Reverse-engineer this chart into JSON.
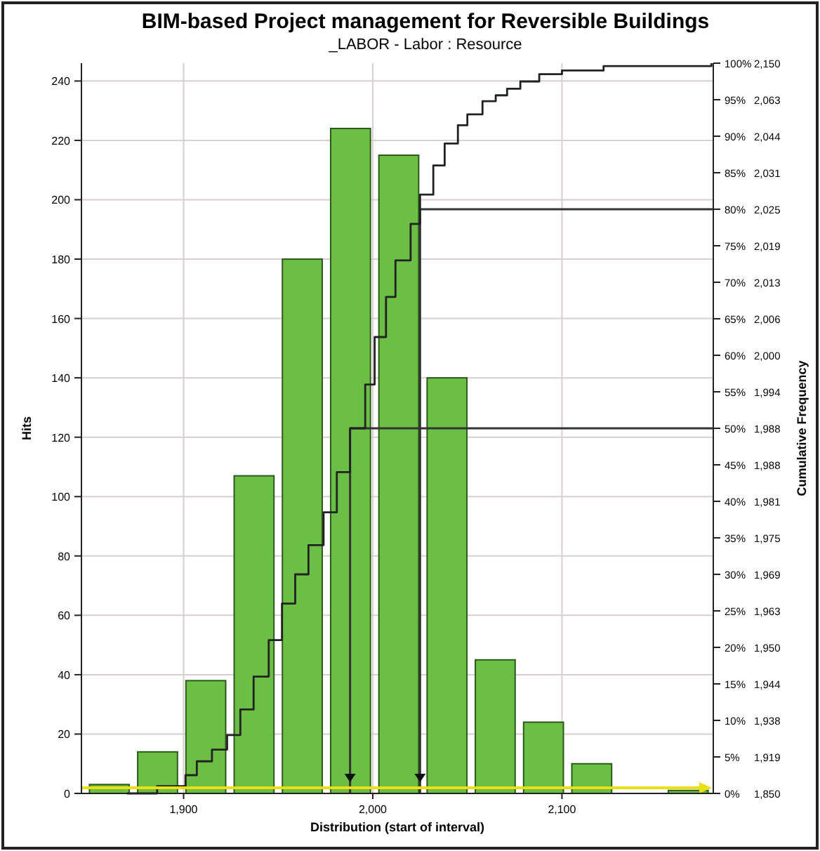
{
  "chart_data": {
    "type": "histogram",
    "title": "BIM-based Project management for Reversible Buildings",
    "subtitle": "_LABOR - Labor : Resource",
    "xlabel": "Distribution (start of interval)",
    "ylabel": "Hits",
    "y2label": "Cumulative Frequency",
    "bins": [
      1848,
      1873.5,
      1899,
      1924.5,
      1950,
      1975.5,
      2001,
      2026.5,
      2052,
      2077.5,
      2103,
      2128.5,
      2154,
      2179.5
    ],
    "values": [
      3,
      14,
      38,
      107,
      180,
      224,
      215,
      140,
      45,
      24,
      10,
      0,
      1
    ],
    "color": "#6cbf45",
    "series": [
      {
        "type": "step",
        "axis": "y2",
        "color": "#222222",
        "x": [
          1870,
          1886,
          1901,
          1907,
          1915,
          1923,
          1930,
          1937,
          1945,
          1952,
          1959,
          1966,
          1974,
          1981,
          1988,
          1996,
          2001,
          2007,
          2012,
          2020,
          2025,
          2032,
          2038,
          2045,
          2050,
          2058,
          2065,
          2071,
          2078,
          2088,
          2100,
          2122,
          2179
        ],
        "values": [
          0,
          1,
          2.5,
          4.4,
          6,
          8,
          11.5,
          16,
          21,
          26,
          30,
          34,
          38.5,
          44,
          50,
          56,
          62.5,
          68,
          73,
          78,
          82,
          86,
          89,
          91.5,
          93,
          94.8,
          95.6,
          96.5,
          97.5,
          98.5,
          99,
          99.6,
          100
        ]
      }
    ],
    "xlim": [
      1846,
      2180
    ],
    "xticks": [
      {
        "value": 1900,
        "label": "1,900"
      },
      {
        "value": 2000,
        "label": "2,000"
      },
      {
        "value": 2100,
        "label": "2,100"
      }
    ],
    "ylim": [
      0,
      246
    ],
    "yticks": [
      0,
      20,
      40,
      60,
      80,
      100,
      120,
      140,
      160,
      180,
      200,
      220,
      240
    ],
    "y2lim": [
      0,
      100
    ],
    "y2ticks": [
      {
        "value": 0,
        "label": "0%"
      },
      {
        "value": 5,
        "label": "5%"
      },
      {
        "value": 10,
        "label": "10%"
      },
      {
        "value": 15,
        "label": "15%"
      },
      {
        "value": 20,
        "label": "20%"
      },
      {
        "value": 25,
        "label": "25%"
      },
      {
        "value": 30,
        "label": "30%"
      },
      {
        "value": 35,
        "label": "35%"
      },
      {
        "value": 40,
        "label": "40%"
      },
      {
        "value": 45,
        "label": "45%"
      },
      {
        "value": 50,
        "label": "50%"
      },
      {
        "value": 55,
        "label": "55%"
      },
      {
        "value": 60,
        "label": "60%"
      },
      {
        "value": 65,
        "label": "65%"
      },
      {
        "value": 70,
        "label": "70%"
      },
      {
        "value": 75,
        "label": "75%"
      },
      {
        "value": 80,
        "label": "80%"
      },
      {
        "value": 85,
        "label": "85%"
      },
      {
        "value": 90,
        "label": "90%"
      },
      {
        "value": 95,
        "label": "95%"
      },
      {
        "value": 100,
        "label": "100%"
      }
    ],
    "annotations": [
      "1,850",
      "1,919",
      "1,938",
      "1,944",
      "1,950",
      "1,963",
      "1,969",
      "1,975",
      "1,981",
      "1,988",
      "1,988",
      "1,994",
      "2,000",
      "2,006",
      "2,013",
      "2,019",
      "2,025",
      "2,031",
      "2,044",
      "2,063",
      "2,150"
    ],
    "ref_lines": [
      {
        "axis": "y2",
        "value": 50,
        "color": "#333333"
      },
      {
        "axis": "y2",
        "value": 80,
        "color": "#333333"
      },
      {
        "axis": "x",
        "value": 1988,
        "color": "#333333"
      },
      {
        "axis": "x",
        "value": 2025,
        "color": "#333333"
      }
    ],
    "grid": true
  }
}
